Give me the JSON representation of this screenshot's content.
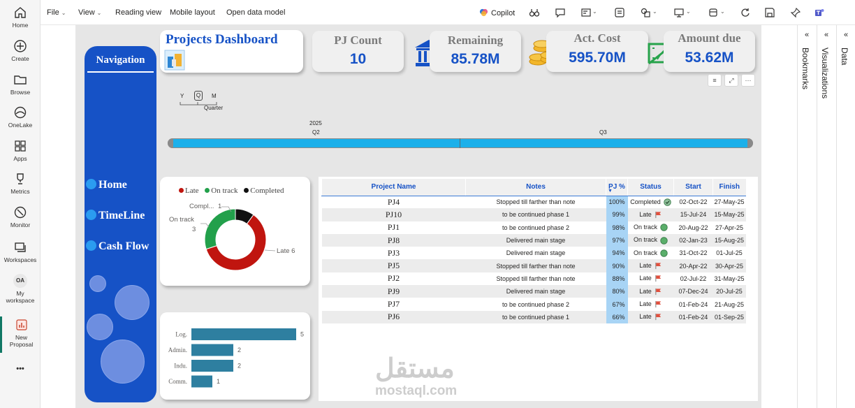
{
  "rail": {
    "items": [
      {
        "label": "Home",
        "icon": "home-icon"
      },
      {
        "label": "Create",
        "icon": "plus-circle-icon"
      },
      {
        "label": "Browse",
        "icon": "folder-icon"
      },
      {
        "label": "OneLake",
        "icon": "onelake-icon"
      },
      {
        "label": "Apps",
        "icon": "apps-icon"
      },
      {
        "label": "Metrics",
        "icon": "trophy-icon"
      },
      {
        "label": "Monitor",
        "icon": "monitor-icon"
      },
      {
        "label": "Workspaces",
        "icon": "workspaces-icon"
      }
    ],
    "my_workspace": {
      "avatar": "OA",
      "line1": "My",
      "line2": "workspace"
    },
    "new_proposal": {
      "line1": "New",
      "line2": "Proposal"
    },
    "more": "•••"
  },
  "menu": {
    "file": "File",
    "view": "View",
    "reading_view": "Reading view",
    "mobile_layout": "Mobile layout",
    "open_data_model": "Open data model",
    "copilot": "Copilot"
  },
  "panes": {
    "bookmarks": "Bookmarks",
    "visualizations": "Visualizations",
    "data": "Data",
    "collapse": "«"
  },
  "navigation": {
    "title": "Navigation",
    "links": [
      "Home",
      "TimeLine",
      "Cash Flow"
    ]
  },
  "header": {
    "title": "Projects Dashboard"
  },
  "kpis": [
    {
      "label": "PJ Count",
      "value": "10",
      "icon": ""
    },
    {
      "label": "Remaining",
      "value": "85.78M",
      "icon": "bank-icon"
    },
    {
      "label": "Act. Cost",
      "value": "595.70M",
      "icon": "coins-icon"
    },
    {
      "label": "Amount due",
      "value": "53.62M",
      "icon": "cash-icon"
    }
  ],
  "timeline": {
    "granularity": {
      "y": "Y",
      "q": "Q",
      "m": "M",
      "label": "Quarter"
    },
    "year": "2025",
    "periods": [
      "Q2",
      "Q3"
    ]
  },
  "visual_header": {
    "filter": "≡",
    "focus": "⤢",
    "more": "···"
  },
  "colors": {
    "late": "#c0150f",
    "on_track": "#22a04b",
    "completed": "#111111",
    "accent": "#1652c6",
    "bar": "#2e7fa0",
    "pct_bar": "#a8d4f5"
  },
  "donut": {
    "legend": [
      "Late",
      "On track",
      "Completed"
    ],
    "labels": {
      "completed": "Compl...",
      "completed_value": "1",
      "on_track": "On track",
      "on_track_value": "3",
      "late": "Late 6"
    }
  },
  "chart_data": {
    "type": "bar",
    "orientation": "horizontal",
    "categories": [
      "Log.",
      "Admin.",
      "Indu.",
      "Comm."
    ],
    "values": [
      5,
      2,
      2,
      1
    ],
    "title": "",
    "xlabel": "",
    "ylabel": ""
  },
  "donut_data": {
    "type": "pie",
    "categories": [
      "Late",
      "On track",
      "Completed"
    ],
    "values": [
      6,
      3,
      1
    ]
  },
  "table": {
    "columns": [
      "Project Name",
      "Notes",
      "PJ %",
      "Status",
      "Start",
      "Finish"
    ],
    "sort_indicator": "▼",
    "rows": [
      {
        "name": "PJ4",
        "notes": "Stopped till farther than note",
        "pct": "100%",
        "pct_value": 1.0,
        "status": "Completed",
        "status_icon": "check-circle-icon",
        "start": "02-Oct-22",
        "finish": "27-May-25"
      },
      {
        "name": "PJ10",
        "notes": "to be continued phase 1",
        "pct": "99%",
        "pct_value": 0.99,
        "status": "Late",
        "status_icon": "red-flag-icon",
        "start": "15-Jul-24",
        "finish": "15-May-25"
      },
      {
        "name": "PJ1",
        "notes": "to be continued phase 2",
        "pct": "98%",
        "pct_value": 0.98,
        "status": "On track",
        "status_icon": "green-circle-icon",
        "start": "20-Aug-22",
        "finish": "27-Apr-25"
      },
      {
        "name": "PJ8",
        "notes": "Delivered main stage",
        "pct": "97%",
        "pct_value": 0.97,
        "status": "On track",
        "status_icon": "green-circle-icon",
        "start": "02-Jan-23",
        "finish": "15-Aug-25"
      },
      {
        "name": "PJ3",
        "notes": "Delivered main stage",
        "pct": "94%",
        "pct_value": 0.94,
        "status": "On track",
        "status_icon": "green-circle-icon",
        "start": "31-Oct-22",
        "finish": "01-Jul-25"
      },
      {
        "name": "PJ5",
        "notes": "Stopped till farther than note",
        "pct": "90%",
        "pct_value": 0.9,
        "status": "Late",
        "status_icon": "red-flag-icon",
        "start": "20-Apr-22",
        "finish": "30-Apr-25"
      },
      {
        "name": "PJ2",
        "notes": "Stopped till farther than note",
        "pct": "88%",
        "pct_value": 0.88,
        "status": "Late",
        "status_icon": "red-flag-icon",
        "start": "02-Jul-22",
        "finish": "31-May-25"
      },
      {
        "name": "PJ9",
        "notes": "Delivered main stage",
        "pct": "80%",
        "pct_value": 0.8,
        "status": "Late",
        "status_icon": "red-flag-icon",
        "start": "07-Dec-24",
        "finish": "20-Jul-25"
      },
      {
        "name": "PJ7",
        "notes": "to be continued phase 2",
        "pct": "67%",
        "pct_value": 0.67,
        "status": "Late",
        "status_icon": "red-flag-icon",
        "start": "01-Feb-24",
        "finish": "21-Aug-25"
      },
      {
        "name": "PJ6",
        "notes": "to be continued phase 1",
        "pct": "66%",
        "pct_value": 0.66,
        "status": "Late",
        "status_icon": "red-flag-icon",
        "start": "01-Feb-24",
        "finish": "01-Sep-25"
      }
    ]
  },
  "watermark": {
    "arabic": "مستقل",
    "latin": "mostaql.com"
  }
}
